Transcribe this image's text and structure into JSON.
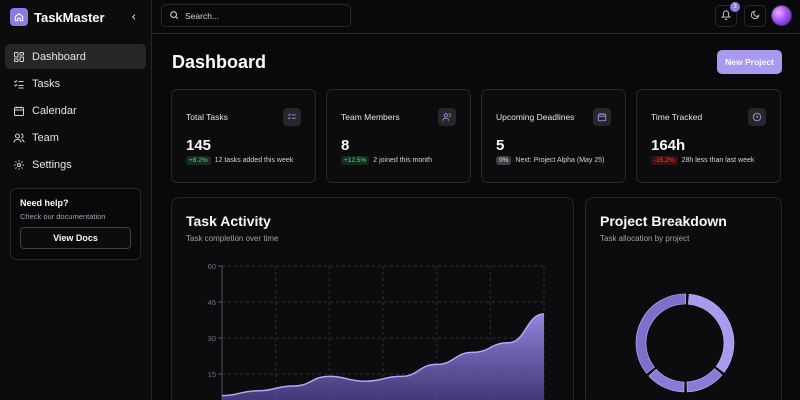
{
  "app": {
    "name": "TaskMaster"
  },
  "sidebar": {
    "items": [
      {
        "label": "Dashboard",
        "icon": "dashboard-icon",
        "active": true
      },
      {
        "label": "Tasks",
        "icon": "tasks-icon",
        "active": false
      },
      {
        "label": "Calendar",
        "icon": "calendar-icon",
        "active": false
      },
      {
        "label": "Team",
        "icon": "team-icon",
        "active": false
      },
      {
        "label": "Settings",
        "icon": "settings-icon",
        "active": false
      }
    ],
    "help": {
      "title": "Need help?",
      "subtitle": "Check our documentation",
      "button": "View Docs"
    }
  },
  "header": {
    "search_placeholder": "Search...",
    "notifications_count": "3"
  },
  "page": {
    "title": "Dashboard",
    "new_project_label": "New Project"
  },
  "stats": [
    {
      "label": "Total Tasks",
      "value": "145",
      "delta": "+8.2%",
      "delta_tone": "up",
      "note": "12 tasks added this week",
      "icon": "checklist-icon"
    },
    {
      "label": "Team Members",
      "value": "8",
      "delta": "+12.5%",
      "delta_tone": "up",
      "note": "2 joined this month",
      "icon": "users-icon"
    },
    {
      "label": "Upcoming Deadlines",
      "value": "5",
      "delta": "0%",
      "delta_tone": "neutral",
      "note": "Next: Project Alpha (May 25)",
      "icon": "calendar-icon"
    },
    {
      "label": "Time Tracked",
      "value": "164h",
      "delta": "-15.2%",
      "delta_tone": "down",
      "note": "28h less than last week",
      "icon": "clock-icon"
    }
  ],
  "activity": {
    "title": "Task Activity",
    "subtitle": "Task completion over time"
  },
  "breakdown": {
    "title": "Project Breakdown",
    "subtitle": "Task allocation by project"
  },
  "colors": {
    "accent": "#a99af0",
    "accent_dark": "#6d5fc7",
    "background": "#09090b",
    "border": "#27272a"
  },
  "chart_data": [
    {
      "type": "area",
      "title": "Task Activity",
      "subtitle": "Task completion over time",
      "y_ticks": [
        "60",
        "45",
        "30",
        "15"
      ],
      "ylim": [
        0,
        60
      ],
      "grid": true,
      "series": [
        {
          "values": [
            6,
            8,
            10,
            14,
            12,
            14,
            19,
            24,
            28,
            40
          ]
        }
      ]
    },
    {
      "type": "pie",
      "title": "Project Breakdown",
      "subtitle": "Task allocation by project",
      "slices": [
        {
          "value": 35,
          "color": "#a99af0"
        },
        {
          "value": 14,
          "color": "#8a7bd8"
        },
        {
          "value": 14,
          "color": "#8a7bd8"
        },
        {
          "value": 37,
          "color": "#7d6fcc"
        }
      ]
    }
  ]
}
